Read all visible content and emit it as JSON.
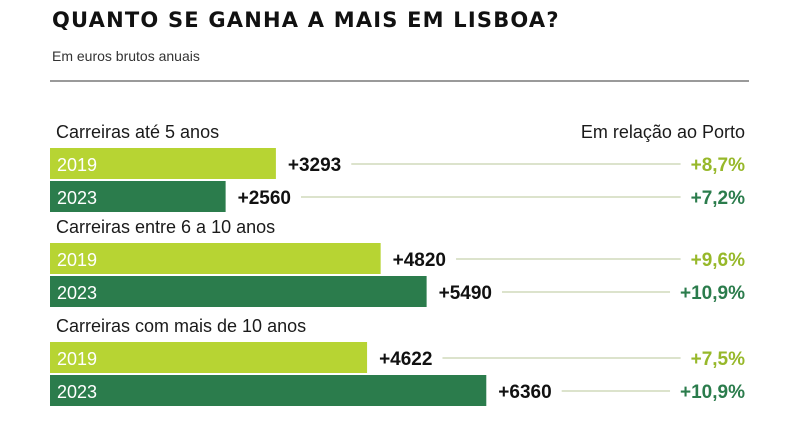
{
  "title": "QUANTO SE GANHA A MAIS EM LISBOA?",
  "subtitle": "Em euros brutos anuais",
  "right_header": "Em relação ao Porto",
  "colors": {
    "light_green": "#b7d433",
    "dark_green": "#2b7c4c",
    "light_pct_text": "#97b82a",
    "dark_pct_text": "#2b7c4c",
    "leader_line": "#b9c79a"
  },
  "chart_data": {
    "type": "bar",
    "orientation": "horizontal",
    "title": "QUANTO SE GANHA A MAIS EM LISBOA?",
    "subtitle": "Em euros brutos anuais",
    "xlim": [
      0,
      8000
    ],
    "groups": [
      {
        "label": "Carreiras até 5 anos",
        "bars": [
          {
            "year": "2019",
            "value": 3293,
            "value_label": "+3293",
            "pct_label": "+8,7%"
          },
          {
            "year": "2023",
            "value": 2560,
            "value_label": "+2560",
            "pct_label": "+7,2%"
          }
        ]
      },
      {
        "label": "Carreiras entre 6 a 10 anos",
        "bars": [
          {
            "year": "2019",
            "value": 4820,
            "value_label": "+4820",
            "pct_label": "+9,6%"
          },
          {
            "year": "2023",
            "value": 5490,
            "value_label": "+5490",
            "pct_label": "+10,9%"
          }
        ]
      },
      {
        "label": "Carreiras com mais de 10 anos",
        "bars": [
          {
            "year": "2019",
            "value": 4622,
            "value_label": "+4622",
            "pct_label": "+7,5%"
          },
          {
            "year": "2023",
            "value": 6360,
            "value_label": "+6360",
            "pct_label": "+10,9%"
          }
        ]
      }
    ]
  }
}
